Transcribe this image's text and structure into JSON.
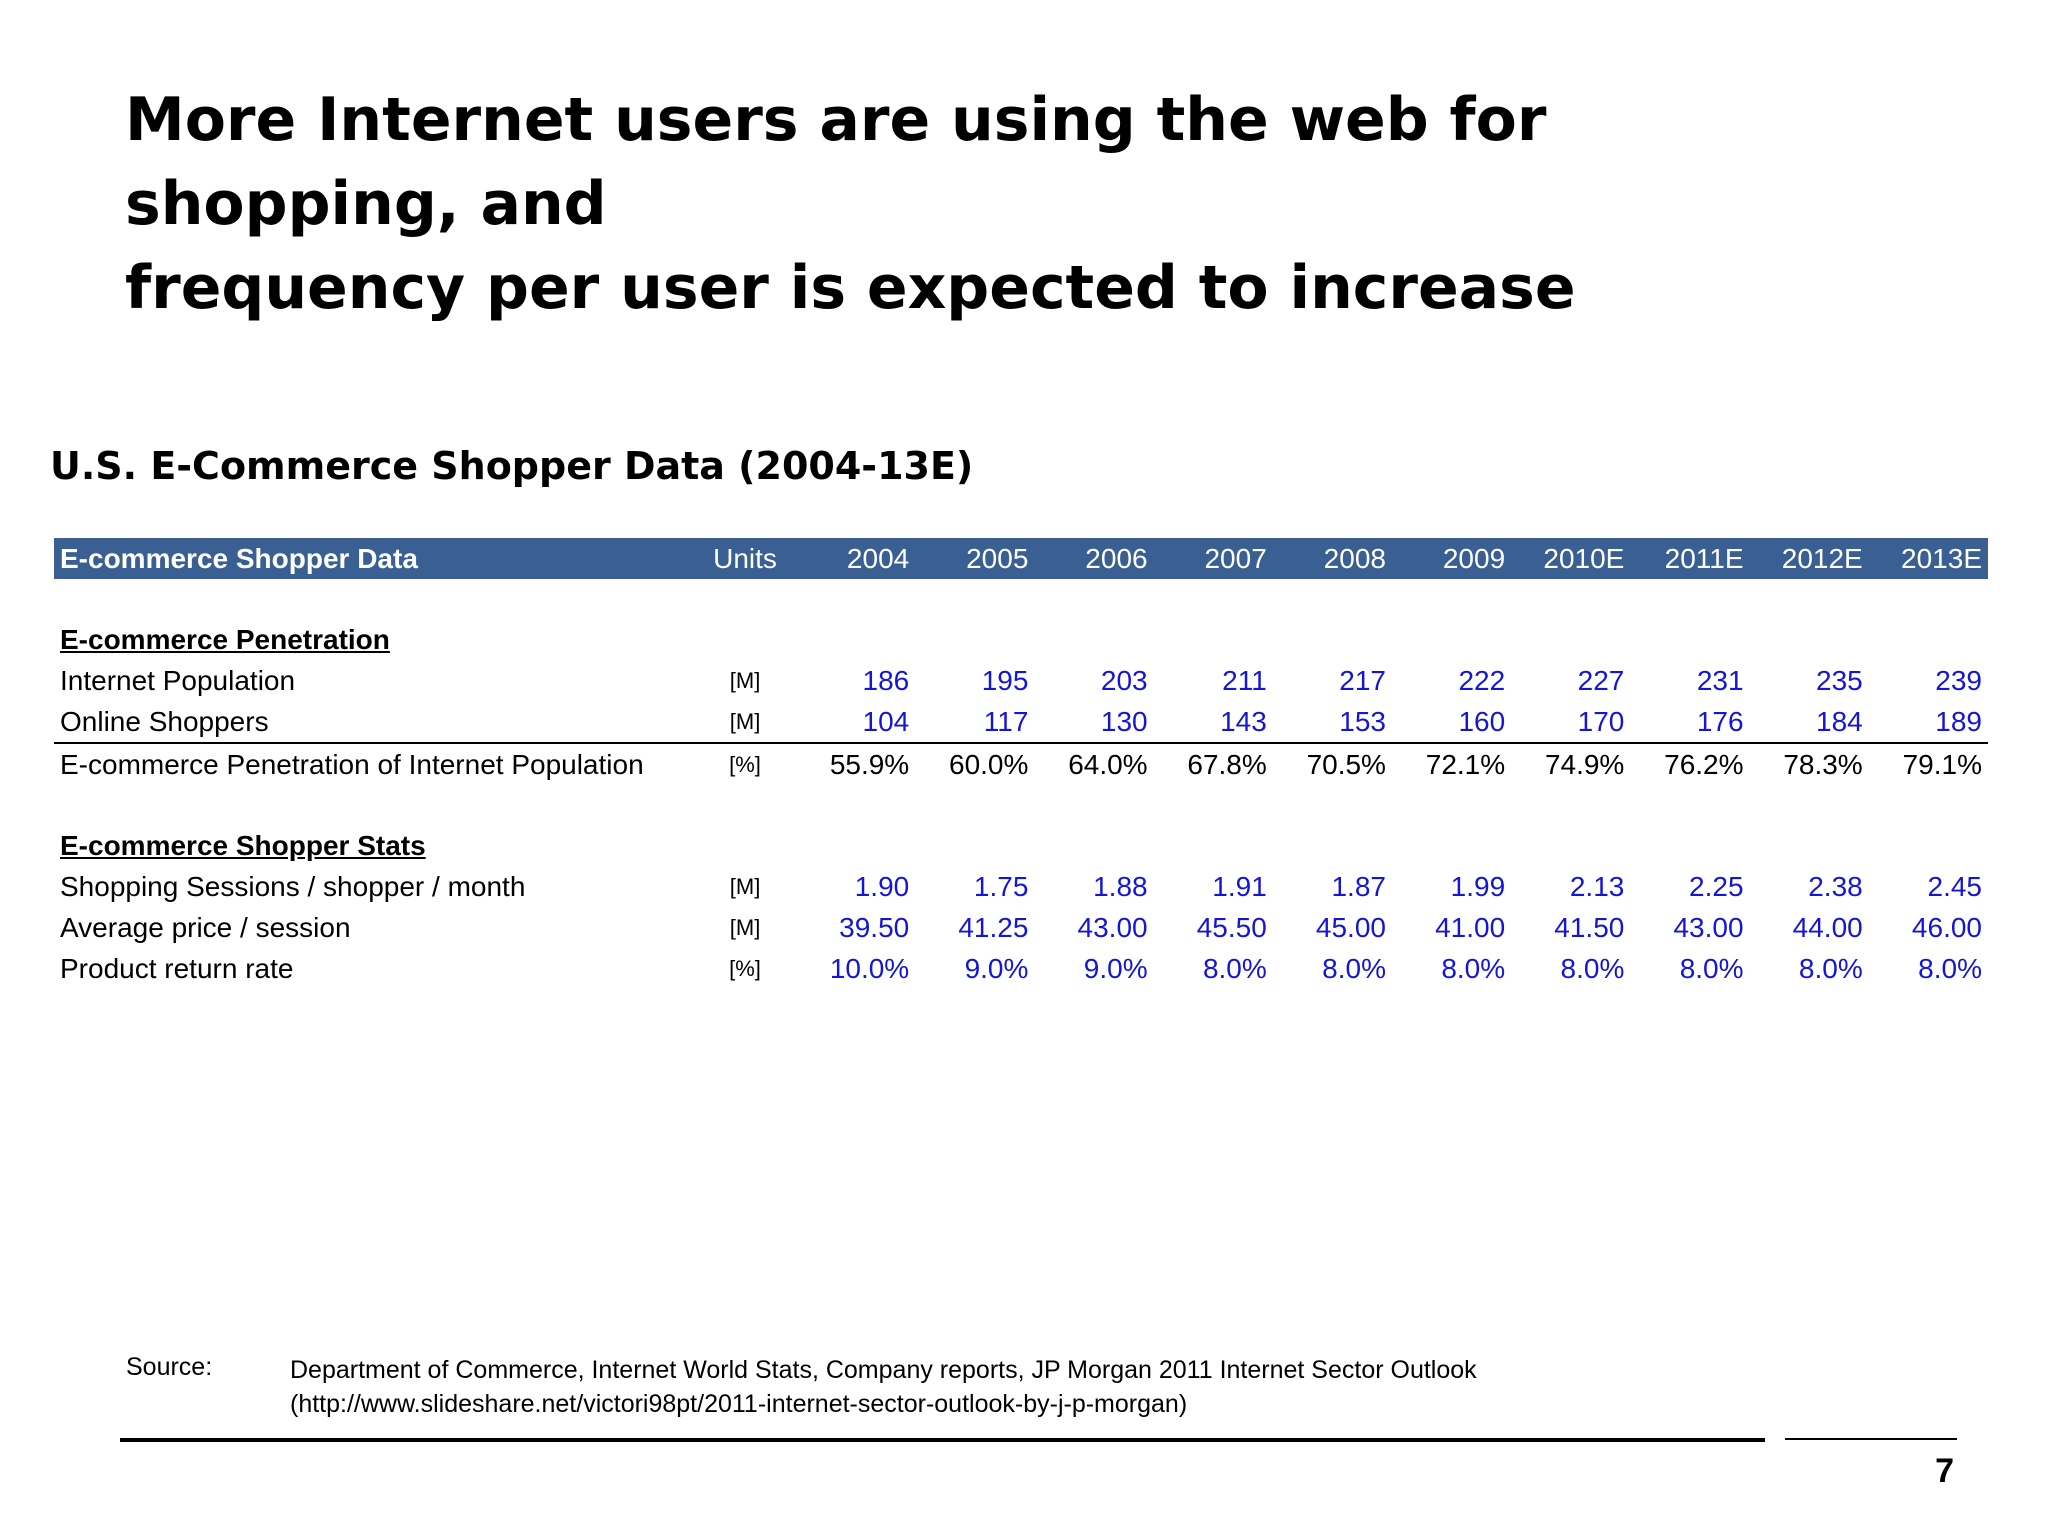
{
  "slide": {
    "title_line1": "More Internet users are using the web for shopping, and",
    "title_line2": "frequency per user is expected to increase",
    "table_title": "U.S. E-Commerce Shopper Data (2004-13E)",
    "page_number": "7"
  },
  "table": {
    "header": {
      "label": "E-commerce Shopper Data",
      "units": "Units",
      "years": [
        "2004",
        "2005",
        "2006",
        "2007",
        "2008",
        "2009",
        "2010E",
        "2011E",
        "2012E",
        "2013E"
      ]
    },
    "sections": [
      {
        "title": "E-commerce Penetration",
        "rows": [
          {
            "label": "Internet Population",
            "unit": "[M]",
            "color": "#1515d6",
            "values": [
              "186",
              "195",
              "203",
              "211",
              "217",
              "222",
              "227",
              "231",
              "235",
              "239"
            ]
          },
          {
            "label": "Online Shoppers",
            "unit": "[M]",
            "color": "#1515d6",
            "values": [
              "104",
              "117",
              "130",
              "143",
              "153",
              "160",
              "170",
              "176",
              "184",
              "189"
            ]
          },
          {
            "label": "E-commerce Penetration of Internet Population",
            "unit": "[%]",
            "color": "#000000",
            "values": [
              "55.9%",
              "60.0%",
              "64.0%",
              "67.8%",
              "70.5%",
              "72.1%",
              "74.9%",
              "76.2%",
              "78.3%",
              "79.1%"
            ]
          }
        ]
      },
      {
        "title": "E-commerce Shopper Stats",
        "rows": [
          {
            "label": "Shopping Sessions / shopper / month",
            "unit": "[M]",
            "color": "#1515d6",
            "values": [
              "1.90",
              "1.75",
              "1.88",
              "1.91",
              "1.87",
              "1.99",
              "2.13",
              "2.25",
              "2.38",
              "2.45"
            ]
          },
          {
            "label": "Average price / session",
            "unit": "[M]",
            "color": "#1515d6",
            "values": [
              "39.50",
              "41.25",
              "43.00",
              "45.50",
              "45.00",
              "41.00",
              "41.50",
              "43.00",
              "44.00",
              "46.00"
            ]
          },
          {
            "label": "Product return rate",
            "unit": "[%]",
            "color": "#1515d6",
            "values": [
              "10.0%",
              "9.0%",
              "9.0%",
              "8.0%",
              "8.0%",
              "8.0%",
              "8.0%",
              "8.0%",
              "8.0%",
              "8.0%"
            ]
          }
        ]
      }
    ]
  },
  "source": {
    "label": "Source:",
    "line1": "Department of Commerce, Internet World Stats, Company reports, JP Morgan 2011 Internet Sector Outlook",
    "line2": "(http://www.slideshare.net/victori98pt/2011-internet-sector-outlook-by-j-p-morgan)"
  }
}
